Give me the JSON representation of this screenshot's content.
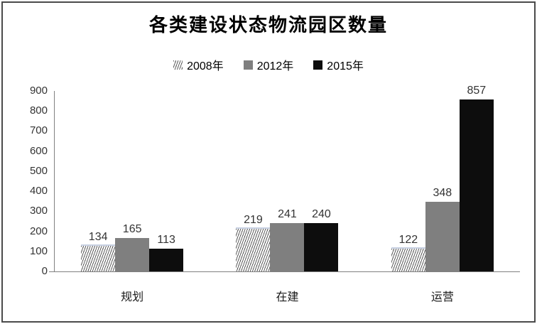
{
  "chart_data": {
    "type": "bar",
    "title": "各类建设状态物流园区数量",
    "categories": [
      "规划",
      "在建",
      "运营"
    ],
    "series": [
      {
        "name": "2008年",
        "values": [
          134,
          219,
          122
        ],
        "style": "hatched-diagonal-light",
        "line_color": "#5a5a5a",
        "top_edge_color": "#c7d0e2"
      },
      {
        "name": "2012年",
        "values": [
          165,
          241,
          348
        ],
        "style": "solid",
        "color": "#7f7f7f"
      },
      {
        "name": "2015年",
        "values": [
          113,
          240,
          857
        ],
        "style": "solid",
        "color": "#0d0d0d"
      }
    ],
    "data_labels": true,
    "ylim": [
      0,
      900
    ],
    "ytick_step": 100,
    "yticks": [
      0,
      100,
      200,
      300,
      400,
      500,
      600,
      700,
      800,
      900
    ],
    "grid": false,
    "legend_position": "top-center",
    "axis_color": "#808080",
    "label_color": "#333333",
    "frame_border_color": "#4a4a4a",
    "background": "#ffffff"
  }
}
